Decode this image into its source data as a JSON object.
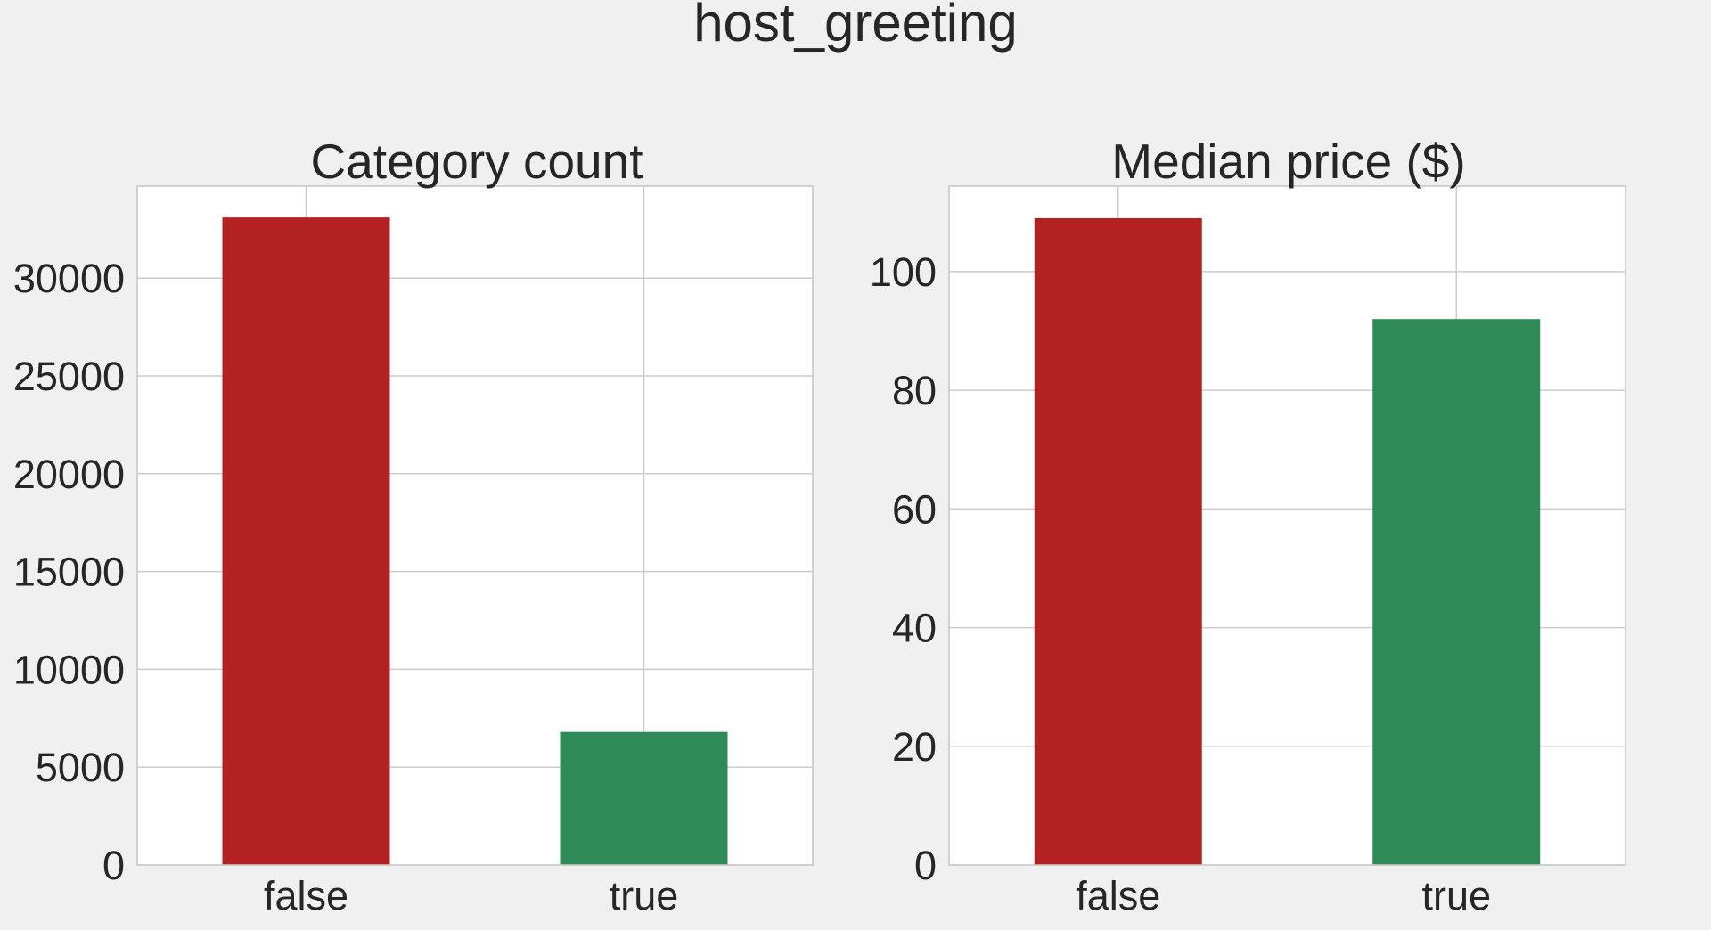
{
  "title": "host_greeting",
  "colors": {
    "false": "#b22222",
    "true": "#2e8b57",
    "background": "#f0f0f0",
    "plot_background": "#ffffff",
    "grid": "#cccccc"
  },
  "chart_data": [
    {
      "type": "bar",
      "title": "Category count",
      "categories": [
        "false",
        "true"
      ],
      "values": [
        33100,
        6800
      ],
      "ylim": [
        0,
        34700
      ],
      "yticks": [
        0,
        5000,
        10000,
        15000,
        20000,
        25000,
        30000
      ],
      "grid": true
    },
    {
      "type": "bar",
      "title": "Median price ($)",
      "categories": [
        "false",
        "true"
      ],
      "values": [
        109,
        92
      ],
      "ylim": [
        0,
        114.4
      ],
      "yticks": [
        0,
        20,
        40,
        60,
        80,
        100
      ],
      "grid": true
    }
  ]
}
